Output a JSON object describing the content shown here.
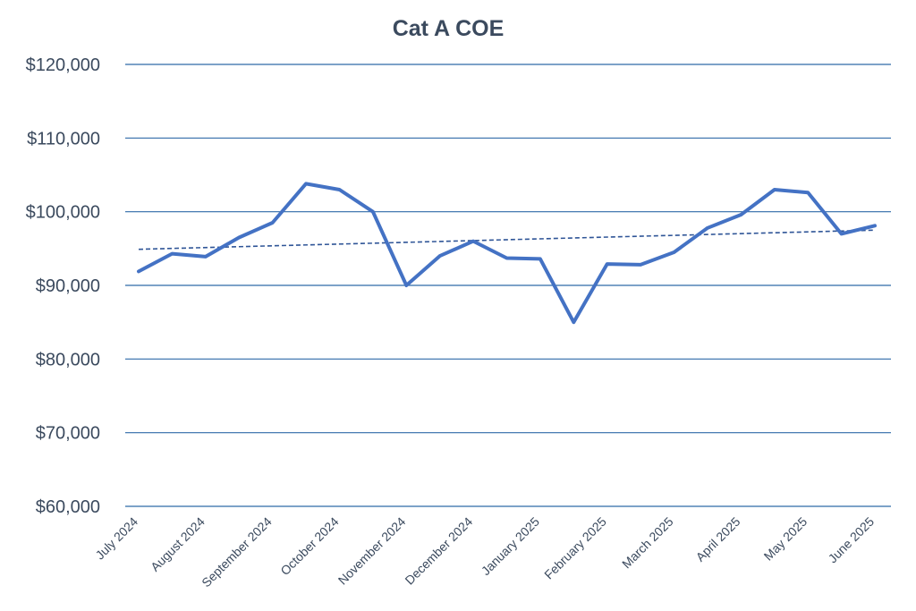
{
  "chart_data": {
    "type": "line",
    "title": "Cat A COE",
    "xlabel": "",
    "ylabel": "",
    "ylim": [
      60000,
      120000
    ],
    "y_ticks": [
      60000,
      70000,
      80000,
      90000,
      100000,
      110000,
      120000
    ],
    "y_tick_labels": [
      "$60,000",
      "$70,000",
      "$80,000",
      "$90,000",
      "$100,000",
      "$110,000",
      "$120,000"
    ],
    "x_tick_labels": [
      "July 2024",
      "August 2024",
      "September 2024",
      "October 2024",
      "November 2024",
      "December 2024",
      "January 2025",
      "February 2025",
      "March 2025",
      "April 2025",
      "May 2025",
      "June 2025"
    ],
    "grid": true,
    "series": [
      {
        "name": "Cat A COE",
        "color": "#4472c4",
        "values": [
          91900,
          94300,
          93900,
          96500,
          98500,
          103800,
          103000,
          100000,
          90000,
          94000,
          96000,
          93700,
          93600,
          85000,
          92900,
          92800,
          94500,
          97800,
          99600,
          103000,
          102600,
          97000,
          98100
        ]
      }
    ],
    "trendline": {
      "name": "Linear trend",
      "color": "#2f5597",
      "style": "dashed",
      "start": 94900,
      "end": 97500
    }
  }
}
